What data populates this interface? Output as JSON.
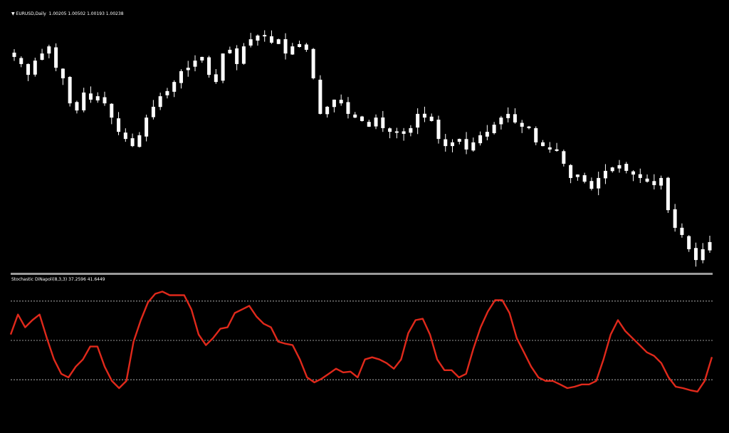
{
  "header": {
    "symbol_menu_icon": "triangle-down-icon",
    "symbol": "EURUSD,Daily",
    "ohlc": "1.00205 1.00502 1.00193 1.00238"
  },
  "indicator": {
    "title": "Stochastic DiNapoli(8,3,3) 37.2596 41.6449"
  },
  "colors": {
    "background": "#000000",
    "candles": "#ffffff",
    "stochastic": "#e0291b",
    "levels": "#c8c8c8",
    "separator": "#9a9a9a"
  },
  "chart_data": [
    {
      "type": "candlestick",
      "title": "EURUSD,Daily",
      "grid": false,
      "close": [
        1.0674,
        1.0649,
        1.0611,
        1.0661,
        1.0686,
        1.0711,
        1.0636,
        1.0599,
        1.0511,
        1.0486,
        1.0549,
        1.0524,
        1.0536,
        1.0511,
        1.0461,
        1.0411,
        1.0386,
        1.0361,
        1.0399,
        1.0461,
        1.0499,
        1.0536,
        1.0554,
        1.0586,
        1.0624,
        1.0636,
        1.0661,
        1.0674,
        1.0611,
        1.0586,
        1.0686,
        1.0699,
        1.0649,
        1.0711,
        1.0736,
        1.0749,
        1.0749,
        1.0724,
        1.0736,
        1.0686,
        1.0711,
        1.0719,
        1.0699,
        1.0599,
        1.0474,
        1.0499,
        1.0524,
        1.0511,
        1.0474,
        1.0461,
        1.0449,
        1.0429,
        1.0461,
        1.0424,
        1.0411,
        1.0411,
        1.0404,
        1.0424,
        1.0474,
        1.0461,
        1.0449,
        1.0386,
        1.0361,
        1.0374,
        1.0386,
        1.0349,
        1.0374,
        1.0399,
        1.0411,
        1.0436,
        1.0461,
        1.0474,
        1.0444,
        1.0429,
        1.0424,
        1.0374,
        1.0361,
        1.0349,
        1.0344,
        1.0299,
        1.0249,
        1.0261,
        1.0236,
        1.0211,
        1.0249,
        1.0274,
        1.0286,
        1.0294,
        1.0274,
        1.0261,
        1.0249,
        1.0236,
        1.0224,
        1.0249,
        1.0136,
        1.0074,
        1.0049,
        0.9999,
        0.9961,
        0.9999,
        1.0024
      ]
    },
    {
      "type": "line",
      "title": "Stochastic DiNapoli(8,3,3) 37.2596 41.6449",
      "ylim": [
        0,
        100
      ],
      "levels": [
        20,
        50,
        80
      ],
      "grid": false,
      "series": [
        {
          "values": [
            54.5,
            69.8,
            60,
            65.5,
            69.8,
            51.8,
            35.5,
            24.5,
            21.8,
            30,
            35.5,
            45.3,
            45.3,
            30,
            19.1,
            13.6,
            19.1,
            49.1,
            65.5,
            79.1,
            85.6,
            87.3,
            84.5,
            84.5,
            84.5,
            73.6,
            54.5,
            46.4,
            51.8,
            58.9,
            60,
            70.9,
            73.6,
            76.4,
            68.2,
            62.7,
            60,
            49.1,
            47.5,
            46.4,
            35.5,
            21.8,
            18,
            20.7,
            24.5,
            28.4,
            25.6,
            26.2,
            21.8,
            35.5,
            37.1,
            35.5,
            32.7,
            28.4,
            35.5,
            55.6,
            65.5,
            66.5,
            54.5,
            35.5,
            27.3,
            27.3,
            21.8,
            24.5,
            43.6,
            60,
            72,
            80.7,
            80.7,
            70.9,
            51.8,
            40.9,
            30,
            21.8,
            19.1,
            19.1,
            16.4,
            13.6,
            14.7,
            16.4,
            16.4,
            19.1,
            35.5,
            54.5,
            65.5,
            57.3,
            51.8,
            46.4,
            40.9,
            38.2,
            32.7,
            21.8,
            14.7,
            13.6,
            12,
            10.9,
            19.1,
            37.3
          ]
        }
      ]
    }
  ]
}
